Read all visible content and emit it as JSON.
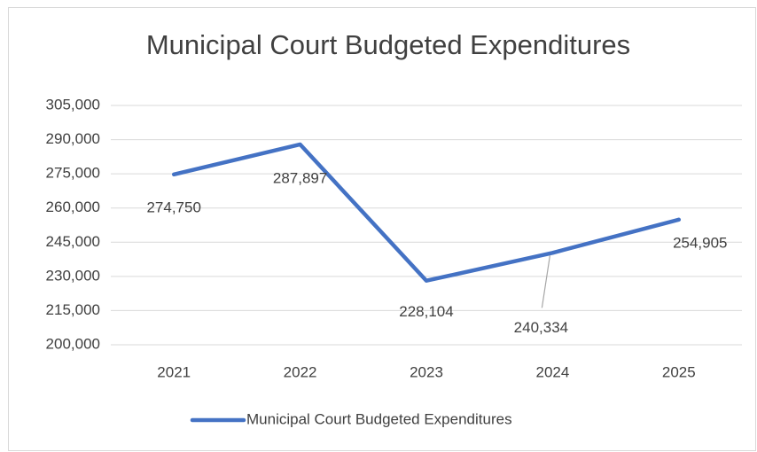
{
  "chart_data": {
    "type": "line",
    "title": "Municipal Court Budgeted Expenditures",
    "categories": [
      "2021",
      "2022",
      "2023",
      "2024",
      "2025"
    ],
    "series": [
      {
        "name": "Municipal Court Budgeted Expenditures",
        "color": "#4472c4",
        "values": [
          274750,
          287897,
          228104,
          240334,
          254905
        ],
        "value_labels": [
          "274,750",
          "287,897",
          "228,104",
          "240,334",
          "254,905"
        ]
      }
    ],
    "ylim": [
      200000,
      305000
    ],
    "yticks": [
      {
        "value": 200000,
        "label": "200,000"
      },
      {
        "value": 215000,
        "label": "215,000"
      },
      {
        "value": 230000,
        "label": "230,000"
      },
      {
        "value": 245000,
        "label": "245,000"
      },
      {
        "value": 260000,
        "label": "260,000"
      },
      {
        "value": 275000,
        "label": "275,000"
      },
      {
        "value": 290000,
        "label": "290,000"
      },
      {
        "value": 305000,
        "label": "305,000"
      }
    ],
    "grid": true,
    "legend": "bottom"
  }
}
